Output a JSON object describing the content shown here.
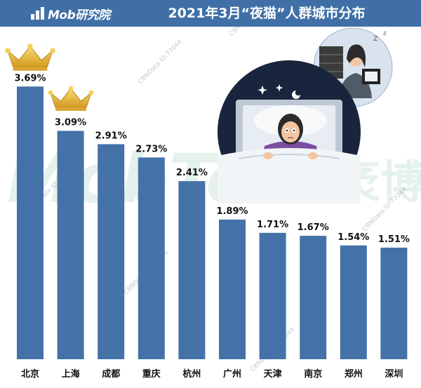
{
  "header": {
    "logo_text": "Mob研究院",
    "title": "2021年3月“夜猫”人群城市分布"
  },
  "watermark": {
    "brand_latin": "MobTech",
    "brand_cn": "袤博",
    "id_text": "CBNData ID:77044"
  },
  "colors": {
    "header_bg": "#3f6fa6",
    "bar": "#4472a8",
    "crown": "#e7b73c",
    "text": "#111111"
  },
  "illustration": {
    "icons": [
      "crown-icon",
      "sleepless-woman-in-bed",
      "thought-bubble-woman-at-computer"
    ]
  },
  "chart_data": {
    "type": "bar",
    "title": "2021年3月“夜猫”人群城市分布",
    "categories": [
      "北京",
      "上海",
      "成都",
      "重庆",
      "杭州",
      "广州",
      "天津",
      "南京",
      "郑州",
      "深圳"
    ],
    "values": [
      3.69,
      3.09,
      2.91,
      2.73,
      2.41,
      1.89,
      1.71,
      1.67,
      1.54,
      1.51
    ],
    "value_labels": [
      "3.69%",
      "3.09%",
      "2.91%",
      "2.73%",
      "2.41%",
      "1.89%",
      "1.71%",
      "1.67%",
      "1.54%",
      "1.51%"
    ],
    "unit": "%",
    "grid": false,
    "legend": "none",
    "ylim": [
      0,
      4.5
    ]
  }
}
